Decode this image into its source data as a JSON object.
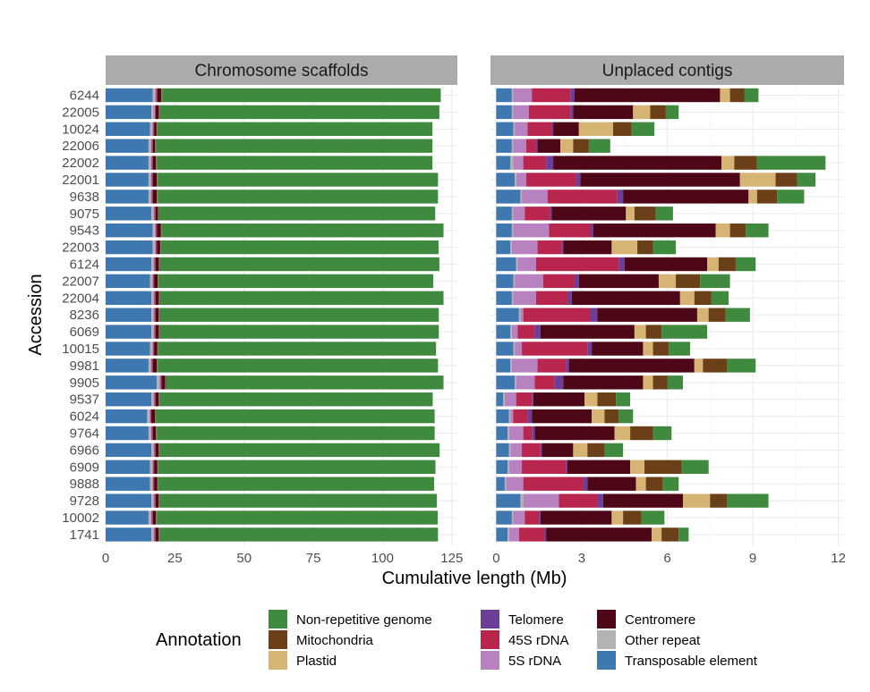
{
  "chart_data": {
    "type": "bar",
    "orientation": "horizontal",
    "stacked": true,
    "xlabel": "Cumulative length (Mb)",
    "ylabel": "Accession",
    "legend_title": "Annotation",
    "legend_position": "bottom",
    "grid": true,
    "categories": [
      "6244",
      "22005",
      "10024",
      "22006",
      "22002",
      "22001",
      "9638",
      "9075",
      "9543",
      "22003",
      "6124",
      "22007",
      "22004",
      "8236",
      "6069",
      "10015",
      "9981",
      "9905",
      "9537",
      "6024",
      "9764",
      "6966",
      "6909",
      "9888",
      "9728",
      "10002",
      "1741"
    ],
    "stack_order": [
      "Transposable element",
      "Other repeat",
      "5S rDNA",
      "45S rDNA",
      "Telomere",
      "Centromere",
      "Plastid",
      "Mitochondria",
      "Non-repetitive genome"
    ],
    "legend_entries": [
      {
        "name": "Non-repetitive genome",
        "color": "#3f8a3f"
      },
      {
        "name": "Mitochondria",
        "color": "#6b4019"
      },
      {
        "name": "Plastid",
        "color": "#d6b474"
      },
      {
        "name": "Telomere",
        "color": "#6b3f98"
      },
      {
        "name": "45S rDNA",
        "color": "#b8254d"
      },
      {
        "name": "5S rDNA",
        "color": "#b882c0"
      },
      {
        "name": "Centromere",
        "color": "#4d0717"
      },
      {
        "name": "Other repeat",
        "color": "#b3b3b3"
      },
      {
        "name": "Transposable element",
        "color": "#3f78b0"
      }
    ],
    "panels": [
      {
        "title": "Chromosome scaffolds",
        "xlim": [
          0,
          127
        ],
        "xticks": [
          0,
          25,
          50,
          75,
          100,
          125
        ],
        "xtick_labels": [
          "0",
          "25",
          "50",
          "75",
          "100",
          "125"
        ],
        "series": [
          {
            "name": "Transposable element",
            "values": [
              17,
              16.5,
              16,
              15.5,
              15.5,
              15.5,
              15.5,
              16.5,
              17,
              17,
              16.5,
              16,
              16.5,
              16.5,
              16.5,
              16,
              15.5,
              18.5,
              16.5,
              15,
              15.5,
              16.5,
              16,
              16,
              16.5,
              15.5,
              16.5
            ]
          },
          {
            "name": "Other repeat",
            "values": [
              0.8,
              0.8,
              0.8,
              0.8,
              0.8,
              0.8,
              0.8,
              0.8,
              0.8,
              0.8,
              0.8,
              0.8,
              0.8,
              0.8,
              0.8,
              0.8,
              0.8,
              0.9,
              0.8,
              0.8,
              0.8,
              0.8,
              0.8,
              0.8,
              0.8,
              0.8,
              0.8
            ]
          },
          {
            "name": "5S rDNA",
            "values": [
              0.4,
              0.4,
              0.3,
              0.3,
              0.3,
              0.3,
              0.3,
              0.3,
              0.3,
              0.3,
              0.3,
              0.3,
              0.3,
              0.3,
              0.3,
              0.3,
              0.3,
              0.4,
              0.3,
              0.3,
              0.3,
              0.3,
              0.3,
              0.3,
              0.3,
              0.3,
              0.3
            ]
          },
          {
            "name": "45S rDNA",
            "values": [
              0.3,
              0.3,
              0.3,
              0.3,
              0.3,
              0.3,
              0.3,
              0.3,
              0.3,
              0.3,
              0.3,
              0.3,
              0.3,
              0.3,
              0.3,
              0.3,
              0.3,
              0.3,
              0.3,
              0.3,
              0.3,
              0.3,
              0.3,
              0.3,
              0.3,
              0.3,
              0.3
            ]
          },
          {
            "name": "Telomere",
            "values": [
              0.1,
              0.1,
              0.1,
              0.1,
              0.1,
              0.1,
              0.1,
              0.1,
              0.1,
              0.1,
              0.1,
              0.1,
              0.1,
              0.1,
              0.1,
              0.1,
              0.1,
              0.1,
              0.1,
              0.1,
              0.1,
              0.1,
              0.1,
              0.1,
              0.1,
              0.1,
              0.1
            ]
          },
          {
            "name": "Centromere",
            "values": [
              1.5,
              1.2,
              0.9,
              0.9,
              1.2,
              1.5,
              1.5,
              0.9,
              1.5,
              1.2,
              1.3,
              1.3,
              1.3,
              1.2,
              1.3,
              1.2,
              1.5,
              1.3,
              1.2,
              1.3,
              1.2,
              1.2,
              1.2,
              1.2,
              1.2,
              1.2,
              1.2
            ]
          },
          {
            "name": "Plastid",
            "values": [
              0.1,
              0.1,
              0.1,
              0.1,
              0.1,
              0.1,
              0.1,
              0.1,
              0.1,
              0.1,
              0.1,
              0.1,
              0.1,
              0.1,
              0.1,
              0.1,
              0.1,
              0.1,
              0.1,
              0.1,
              0.1,
              0.1,
              0.1,
              0.1,
              0.1,
              0.1,
              0.1
            ]
          },
          {
            "name": "Mitochondria",
            "values": [
              0.2,
              0.2,
              0.2,
              0.2,
              0.2,
              0.2,
              0.2,
              0.2,
              0.2,
              0.2,
              0.2,
              0.2,
              0.2,
              0.2,
              0.2,
              0.2,
              0.2,
              0.2,
              0.2,
              0.2,
              0.2,
              0.2,
              0.2,
              0.2,
              0.2,
              0.2,
              0.2
            ]
          },
          {
            "name": "Non-repetitive genome",
            "values": [
              100.6,
              100.9,
              99.3,
              99.8,
              99.5,
              101.2,
              101.2,
              99.8,
              101.7,
              100.2,
              100.9,
              99.2,
              102.4,
              100.8,
              100.7,
              100.3,
              101.2,
              100.2,
              98.6,
              100.7,
              100.3,
              101.1,
              100.1,
              99.6,
              100.1,
              101.4,
              100.5
            ]
          }
        ]
      },
      {
        "title": "Unplaced contigs",
        "xlim": [
          -0.2,
          12.2
        ],
        "xticks": [
          0,
          3,
          6,
          9,
          12
        ],
        "xtick_labels": [
          "0",
          "3",
          "6",
          "9",
          "12"
        ],
        "series": [
          {
            "name": "Transposable element",
            "values": [
              0.55,
              0.55,
              0.6,
              0.55,
              0.5,
              0.65,
              0.85,
              0.55,
              0.55,
              0.5,
              0.7,
              0.6,
              0.55,
              0.8,
              0.5,
              0.6,
              0.5,
              0.65,
              0.25,
              0.45,
              0.4,
              0.45,
              0.4,
              0.3,
              0.85,
              0.55,
              0.4
            ]
          },
          {
            "name": "Other repeat",
            "values": [
              0.05,
              0.05,
              0.05,
              0.05,
              0.1,
              0.05,
              0.05,
              0.05,
              0.05,
              0.05,
              0.05,
              0.05,
              0.05,
              0.05,
              0.05,
              0.05,
              0.05,
              0.05,
              0.05,
              0.05,
              0.05,
              0.05,
              0.05,
              0.05,
              0.1,
              0.05,
              0.05
            ]
          },
          {
            "name": "Centromere",
            "values": [
              5.1,
              2.1,
              0.9,
              0.8,
              5.9,
              5.6,
              4.4,
              2.6,
              4.3,
              1.7,
              2.9,
              2.8,
              3.8,
              3.5,
              3.3,
              1.8,
              4.4,
              2.8,
              1.8,
              2.1,
              2.8,
              1.1,
              2.2,
              1.7,
              2.8,
              2.5,
              3.7
            ]
          },
          {
            "name": "5S rDNA",
            "values": [
              0.65,
              0.55,
              0.45,
              0.45,
              0.35,
              0.35,
              0.9,
              0.4,
              1.25,
              0.9,
              0.65,
              1.0,
              0.8,
              0.1,
              0.2,
              0.25,
              0.9,
              0.65,
              0.4,
              0.1,
              0.5,
              0.4,
              0.45,
              0.6,
              1.25,
              0.4,
              0.35
            ]
          },
          {
            "name": "45S rDNA",
            "values": [
              1.35,
              1.45,
              0.85,
              0.35,
              0.8,
              1.75,
              2.45,
              0.9,
              1.45,
              0.85,
              2.9,
              1.1,
              1.1,
              2.35,
              0.6,
              2.3,
              1.0,
              0.7,
              0.55,
              0.5,
              0.3,
              0.65,
              1.55,
              2.1,
              1.35,
              0.5,
              0.9
            ]
          },
          {
            "name": "Telomere",
            "values": [
              0.15,
              0.1,
              0.05,
              0.05,
              0.25,
              0.15,
              0.2,
              0.05,
              0.1,
              0.05,
              0.2,
              0.15,
              0.15,
              0.25,
              0.2,
              0.15,
              0.1,
              0.3,
              0.05,
              0.15,
              0.1,
              0.05,
              0.05,
              0.15,
              0.2,
              0.05,
              0.05
            ]
          },
          {
            "name": "Plastid",
            "values": [
              0.35,
              0.6,
              1.2,
              0.45,
              0.45,
              1.25,
              0.3,
              0.3,
              0.5,
              0.9,
              0.4,
              0.6,
              0.5,
              0.4,
              0.4,
              0.35,
              0.3,
              0.35,
              0.45,
              0.45,
              0.55,
              0.5,
              0.5,
              0.35,
              0.95,
              0.4,
              0.35
            ]
          },
          {
            "name": "Mitochondria",
            "values": [
              0.5,
              0.55,
              0.65,
              0.55,
              0.8,
              0.75,
              0.7,
              0.75,
              0.55,
              0.55,
              0.6,
              0.85,
              0.6,
              0.6,
              0.55,
              0.55,
              0.85,
              0.5,
              0.65,
              0.5,
              0.8,
              0.6,
              1.3,
              0.6,
              0.6,
              0.65,
              0.6
            ]
          },
          {
            "name": "Non-repetitive genome",
            "values": [
              0.5,
              0.45,
              0.8,
              0.75,
              2.4,
              0.65,
              0.95,
              0.6,
              0.8,
              0.8,
              0.7,
              1.05,
              0.6,
              0.85,
              1.6,
              0.75,
              1.0,
              0.55,
              0.5,
              0.5,
              0.65,
              0.65,
              0.95,
              0.55,
              1.45,
              0.8,
              0.35
            ]
          }
        ]
      }
    ]
  }
}
